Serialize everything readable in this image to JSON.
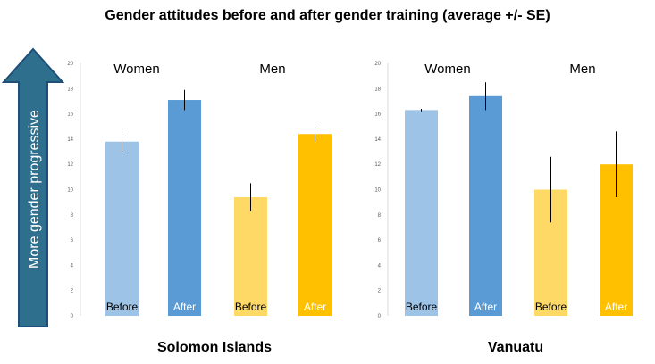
{
  "chart_data": {
    "title": "Gender attitudes before and after gender training (average +/- SE)",
    "arrow_label": "More gender progressive",
    "type": "bar",
    "colors": {
      "women_before": "#9dc3e6",
      "women_after": "#5b9bd5",
      "men_before": "#ffd966",
      "men_after": "#ffc000",
      "arrow_fill": "#2e6f8e",
      "arrow_stroke": "#1f4e79",
      "error_bar": "#000000",
      "axis": "#d9d9d9",
      "tick_text": "#595959",
      "label_dark": "#000000",
      "label_light": "#ffffff"
    },
    "panels": [
      {
        "name": "Solomon Islands",
        "ylim": [
          0,
          20
        ],
        "yticks": [
          0,
          2,
          4,
          6,
          8,
          10,
          12,
          14,
          16,
          18,
          20
        ],
        "groups": [
          {
            "label": "Women",
            "bars": [
              {
                "label": "Before",
                "value": 13.8,
                "error": 0.8,
                "color_key": "women_before",
                "label_color": "label_dark"
              },
              {
                "label": "After",
                "value": 17.1,
                "error": 0.8,
                "color_key": "women_after",
                "label_color": "label_light"
              }
            ]
          },
          {
            "label": "Men",
            "bars": [
              {
                "label": "Before",
                "value": 9.4,
                "error": 1.1,
                "color_key": "men_before",
                "label_color": "label_dark"
              },
              {
                "label": "After",
                "value": 14.4,
                "error": 0.6,
                "color_key": "men_after",
                "label_color": "label_light"
              }
            ]
          }
        ]
      },
      {
        "name": "Vanuatu",
        "ylim": [
          0,
          20
        ],
        "yticks": [
          0,
          2,
          4,
          6,
          8,
          10,
          12,
          14,
          16,
          18,
          20
        ],
        "groups": [
          {
            "label": "Women",
            "bars": [
              {
                "label": "Before",
                "value": 16.3,
                "error": 0.1,
                "color_key": "women_before",
                "label_color": "label_dark"
              },
              {
                "label": "After",
                "value": 17.4,
                "error": 1.1,
                "color_key": "women_after",
                "label_color": "label_light"
              }
            ]
          },
          {
            "label": "Men",
            "bars": [
              {
                "label": "Before",
                "value": 10.0,
                "error": 2.6,
                "color_key": "men_before",
                "label_color": "label_dark"
              },
              {
                "label": "After",
                "value": 12.0,
                "error": 2.6,
                "color_key": "men_after",
                "label_color": "label_light"
              }
            ]
          }
        ]
      }
    ]
  }
}
